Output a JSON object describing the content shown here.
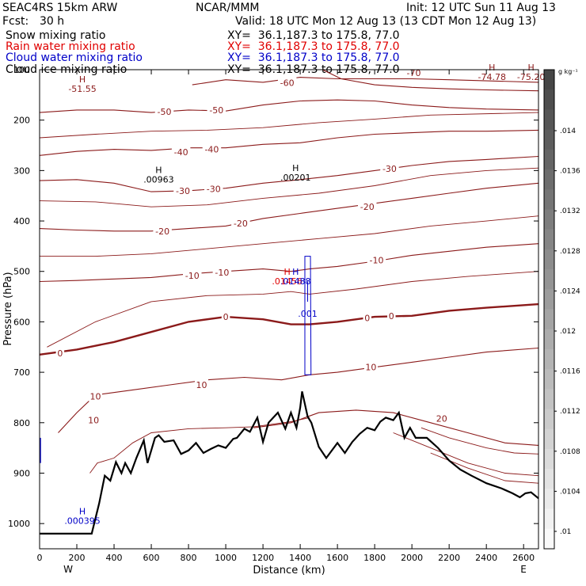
{
  "header": {
    "model": "SEAC4RS 15km ARW",
    "org": "NCAR/MMM",
    "init": "Init: 12 UTC Sun 11 Aug 13",
    "fcst_label": "Fcst:",
    "fcst_value": "30 h",
    "valid": "Valid: 18 UTC Mon 12 Aug 13 (13 CDT Mon 12 Aug 13)"
  },
  "fields": [
    {
      "name": "Snow mixing ratio",
      "xy": "XY=  36.1,187.3 to 175.8, 77.0",
      "color": "#000000"
    },
    {
      "name": "Rain water mixing ratio",
      "xy": "XY=  36.1,187.3 to 175.8, 77.0",
      "color": "#e00000"
    },
    {
      "name": "Cloud water mixing ratio",
      "xy": "XY=  36.1,187.3 to 175.8, 77.0",
      "color": "#0000c8"
    },
    {
      "name": "Cloud ice mixing ratio",
      "xy": "XY=  36.1,187.3 to 175.8, 77.0",
      "color": "#000000"
    }
  ],
  "colorbar": {
    "unit": "g kg⁻¹",
    "labels": [
      ".014",
      ".0136",
      ".0132",
      ".0128",
      ".0124",
      ".012",
      ".0116",
      ".0112",
      ".0108",
      ".0104",
      ".01"
    ]
  },
  "chart_data": {
    "type": "contour cross-section",
    "xlabel": "Distance (km)",
    "ylabel": "Pressure (hPa)",
    "xlim": [
      0,
      2680
    ],
    "ylim": [
      1050,
      100
    ],
    "x_ticks": [
      0,
      200,
      400,
      600,
      800,
      1000,
      1200,
      1400,
      1600,
      1800,
      2000,
      2200,
      2400,
      2600
    ],
    "y_ticks": [
      100,
      200,
      300,
      400,
      500,
      600,
      700,
      800,
      900,
      1000
    ],
    "direction_left": "W",
    "direction_right": "E",
    "temperature_contour_color": "#8b1a1a",
    "terrain_color": "#000000",
    "temperature_contours": [
      {
        "level": -60,
        "points": [
          [
            820,
            130
          ],
          [
            1000,
            120
          ],
          [
            1200,
            125
          ],
          [
            1400,
            115
          ],
          [
            1600,
            118
          ],
          [
            1800,
            118
          ],
          [
            2000,
            118
          ],
          [
            2200,
            120
          ],
          [
            2680,
            125
          ]
        ]
      },
      {
        "level": -60,
        "points": [
          [
            1520,
            100
          ],
          [
            1620,
            118
          ],
          [
            1800,
            130
          ],
          [
            2000,
            135
          ],
          [
            2200,
            138
          ],
          [
            2400,
            140
          ],
          [
            2680,
            142
          ]
        ]
      },
      {
        "level": -50,
        "points": [
          [
            0,
            185
          ],
          [
            200,
            180
          ],
          [
            400,
            180
          ],
          [
            600,
            185
          ],
          [
            800,
            180
          ],
          [
            1000,
            182
          ],
          [
            1200,
            170
          ],
          [
            1400,
            162
          ],
          [
            1600,
            160
          ],
          [
            1800,
            162
          ],
          [
            2000,
            170
          ],
          [
            2200,
            175
          ],
          [
            2400,
            178
          ],
          [
            2680,
            180
          ]
        ]
      },
      {
        "level": -40,
        "points": [
          [
            0,
            270
          ],
          [
            200,
            262
          ],
          [
            400,
            258
          ],
          [
            600,
            260
          ],
          [
            800,
            255
          ],
          [
            1000,
            255
          ],
          [
            1200,
            248
          ],
          [
            1400,
            245
          ],
          [
            1600,
            235
          ],
          [
            1800,
            228
          ],
          [
            2000,
            225
          ],
          [
            2200,
            222
          ],
          [
            2400,
            222
          ],
          [
            2680,
            220
          ]
        ]
      },
      {
        "level": -30,
        "points": [
          [
            0,
            320
          ],
          [
            200,
            318
          ],
          [
            400,
            325
          ],
          [
            600,
            342
          ],
          [
            800,
            340
          ],
          [
            1000,
            335
          ],
          [
            1200,
            325
          ],
          [
            1400,
            318
          ],
          [
            1600,
            310
          ],
          [
            1800,
            300
          ],
          [
            2000,
            290
          ],
          [
            2200,
            282
          ],
          [
            2400,
            278
          ],
          [
            2680,
            272
          ]
        ]
      },
      {
        "level": -20,
        "points": [
          [
            0,
            415
          ],
          [
            200,
            418
          ],
          [
            400,
            420
          ],
          [
            600,
            420
          ],
          [
            800,
            415
          ],
          [
            1000,
            410
          ],
          [
            1200,
            395
          ],
          [
            1400,
            385
          ],
          [
            1600,
            375
          ],
          [
            1800,
            365
          ],
          [
            2000,
            355
          ],
          [
            2200,
            345
          ],
          [
            2400,
            335
          ],
          [
            2680,
            325
          ]
        ]
      },
      {
        "level": -10,
        "points": [
          [
            0,
            520
          ],
          [
            200,
            518
          ],
          [
            400,
            515
          ],
          [
            600,
            512
          ],
          [
            800,
            505
          ],
          [
            1000,
            500
          ],
          [
            1200,
            495
          ],
          [
            1350,
            500
          ],
          [
            1450,
            495
          ],
          [
            1600,
            490
          ],
          [
            1800,
            480
          ],
          [
            2000,
            468
          ],
          [
            2200,
            460
          ],
          [
            2400,
            452
          ],
          [
            2680,
            445
          ]
        ]
      },
      {
        "level": 0,
        "thick": true,
        "points": [
          [
            0,
            665
          ],
          [
            200,
            655
          ],
          [
            400,
            640
          ],
          [
            600,
            620
          ],
          [
            800,
            600
          ],
          [
            1000,
            590
          ],
          [
            1200,
            595
          ],
          [
            1350,
            605
          ],
          [
            1450,
            605
          ],
          [
            1600,
            600
          ],
          [
            1800,
            590
          ],
          [
            2000,
            588
          ],
          [
            2200,
            578
          ],
          [
            2400,
            572
          ],
          [
            2680,
            565
          ]
        ]
      },
      {
        "level": 10,
        "points": [
          [
            100,
            820
          ],
          [
            200,
            780
          ],
          [
            300,
            745
          ],
          [
            500,
            735
          ],
          [
            700,
            725
          ],
          [
            900,
            715
          ],
          [
            1100,
            710
          ],
          [
            1300,
            715
          ],
          [
            1450,
            705
          ],
          [
            1600,
            700
          ],
          [
            1800,
            690
          ],
          [
            2000,
            680
          ],
          [
            2200,
            670
          ],
          [
            2400,
            660
          ],
          [
            2680,
            652
          ]
        ]
      },
      {
        "level": 20,
        "points": [
          [
            1150,
            810
          ],
          [
            1350,
            800
          ],
          [
            1500,
            780
          ],
          [
            1700,
            775
          ],
          [
            1900,
            780
          ],
          [
            2100,
            800
          ],
          [
            2300,
            820
          ],
          [
            2500,
            840
          ],
          [
            2680,
            845
          ]
        ]
      }
    ],
    "thin_contours": [
      [
        [
          270,
          900
        ],
        [
          310,
          880
        ],
        [
          400,
          870
        ],
        [
          500,
          840
        ],
        [
          600,
          820
        ],
        [
          800,
          812
        ],
        [
          1000,
          810
        ],
        [
          1150,
          808
        ],
        [
          1350,
          798
        ],
        [
          1450,
          790
        ]
      ],
      [
        [
          2050,
          810
        ],
        [
          2200,
          830
        ],
        [
          2400,
          850
        ],
        [
          2550,
          860
        ],
        [
          2680,
          862
        ]
      ],
      [
        [
          1900,
          820
        ],
        [
          2100,
          850
        ],
        [
          2300,
          880
        ],
        [
          2500,
          900
        ],
        [
          2680,
          905
        ]
      ],
      [
        [
          2100,
          860
        ],
        [
          2300,
          890
        ],
        [
          2500,
          915
        ],
        [
          2680,
          920
        ]
      ],
      [
        [
          40,
          650
        ],
        [
          300,
          600
        ],
        [
          600,
          560
        ],
        [
          900,
          548
        ],
        [
          1200,
          545
        ],
        [
          1350,
          540
        ],
        [
          1450,
          545
        ],
        [
          1700,
          535
        ],
        [
          2000,
          520
        ],
        [
          2300,
          510
        ],
        [
          2680,
          500
        ]
      ],
      [
        [
          0,
          360
        ],
        [
          300,
          362
        ],
        [
          600,
          372
        ],
        [
          900,
          368
        ],
        [
          1200,
          355
        ],
        [
          1500,
          345
        ],
        [
          1800,
          330
        ],
        [
          2100,
          310
        ],
        [
          2400,
          300
        ],
        [
          2680,
          295
        ]
      ],
      [
        [
          0,
          235
        ],
        [
          300,
          228
        ],
        [
          600,
          222
        ],
        [
          900,
          220
        ],
        [
          1200,
          215
        ],
        [
          1500,
          205
        ],
        [
          1800,
          198
        ],
        [
          2100,
          190
        ],
        [
          2680,
          185
        ]
      ],
      [
        [
          0,
          470
        ],
        [
          300,
          470
        ],
        [
          600,
          465
        ],
        [
          900,
          455
        ],
        [
          1200,
          445
        ],
        [
          1500,
          435
        ],
        [
          1800,
          425
        ],
        [
          2100,
          410
        ],
        [
          2400,
          400
        ],
        [
          2680,
          390
        ]
      ]
    ],
    "contour_labels": [
      {
        "text": "-60",
        "x": 1330,
        "y": 126
      },
      {
        "text": "-70",
        "x": 2010,
        "y": 106
      },
      {
        "text": "-50",
        "x": 670,
        "y": 183
      },
      {
        "text": "-50",
        "x": 950,
        "y": 180
      },
      {
        "text": "-40",
        "x": 760,
        "y": 263
      },
      {
        "text": "-40",
        "x": 925,
        "y": 258
      },
      {
        "text": "-30",
        "x": 770,
        "y": 340
      },
      {
        "text": "-30",
        "x": 935,
        "y": 336
      },
      {
        "text": "-30",
        "x": 1880,
        "y": 296
      },
      {
        "text": "-20",
        "x": 660,
        "y": 420
      },
      {
        "text": "-20",
        "x": 1080,
        "y": 405
      },
      {
        "text": "-20",
        "x": 1760,
        "y": 372
      },
      {
        "text": "-10",
        "x": 820,
        "y": 508
      },
      {
        "text": "-10",
        "x": 980,
        "y": 502
      },
      {
        "text": "-10",
        "x": 1810,
        "y": 478
      },
      {
        "text": "0",
        "x": 1000,
        "y": 590
      },
      {
        "text": "0",
        "x": 1760,
        "y": 592
      },
      {
        "text": "0",
        "x": 1890,
        "y": 588
      },
      {
        "text": "0",
        "x": 110,
        "y": 662
      },
      {
        "text": "10",
        "x": 870,
        "y": 725
      },
      {
        "text": "10",
        "x": 1780,
        "y": 690
      },
      {
        "text": "10",
        "x": 300,
        "y": 748
      },
      {
        "text": "10",
        "x": 290,
        "y": 795
      },
      {
        "text": "20",
        "x": 2160,
        "y": 792
      }
    ],
    "extrema": [
      {
        "mark": "H",
        "value": "-51.55",
        "x": 230,
        "y": 128,
        "color": "#8b1a1a"
      },
      {
        "mark": "H",
        "value": ".00963",
        "x": 640,
        "y": 308,
        "color": "#000000"
      },
      {
        "mark": "H",
        "value": ".00201",
        "x": 1375,
        "y": 304,
        "color": "#000000"
      },
      {
        "mark": "H",
        "value": ".01456",
        "x": 1330,
        "y": 510,
        "color": "#e00000"
      },
      {
        "mark": "H",
        "value": ".01488",
        "x": 1375,
        "y": 510,
        "color": "#0000c8"
      },
      {
        "mark": "H",
        "value": ".000395",
        "x": 230,
        "y": 985,
        "color": "#0000c8"
      },
      {
        "mark": "H",
        "value": "-74.78",
        "x": 2430,
        "y": 105,
        "color": "#8b1a1a"
      },
      {
        "mark": "H",
        "value": "-75.20",
        "x": 2640,
        "y": 105,
        "color": "#8b1a1a"
      }
    ],
    "cloud_water_contour_label": {
      "text": ".001",
      "x": 1440,
      "y": 590
    },
    "terrain_pressure": {
      "x": [
        0,
        200,
        280,
        300,
        320,
        350,
        380,
        410,
        440,
        460,
        490,
        520,
        560,
        580,
        620,
        640,
        670,
        720,
        760,
        800,
        840,
        880,
        920,
        960,
        1000,
        1040,
        1060,
        1100,
        1130,
        1170,
        1200,
        1230,
        1280,
        1320,
        1350,
        1380,
        1400,
        1410,
        1440,
        1460,
        1500,
        1540,
        1600,
        1640,
        1680,
        1720,
        1760,
        1800,
        1830,
        1860,
        1900,
        1930,
        1960,
        1990,
        2020,
        2080,
        2140,
        2200,
        2260,
        2320,
        2400,
        2480,
        2540,
        2580,
        2610,
        2640,
        2680
      ],
      "p": [
        1020,
        1020,
        1020,
        990,
        960,
        905,
        915,
        878,
        900,
        880,
        900,
        870,
        835,
        880,
        830,
        825,
        838,
        835,
        862,
        855,
        840,
        860,
        852,
        845,
        850,
        832,
        830,
        812,
        818,
        790,
        838,
        800,
        780,
        812,
        780,
        810,
        770,
        738,
        788,
        800,
        848,
        870,
        840,
        860,
        838,
        822,
        810,
        815,
        798,
        790,
        795,
        780,
        830,
        810,
        830,
        830,
        850,
        875,
        893,
        905,
        920,
        930,
        940,
        948,
        940,
        938,
        950
      ]
    }
  }
}
